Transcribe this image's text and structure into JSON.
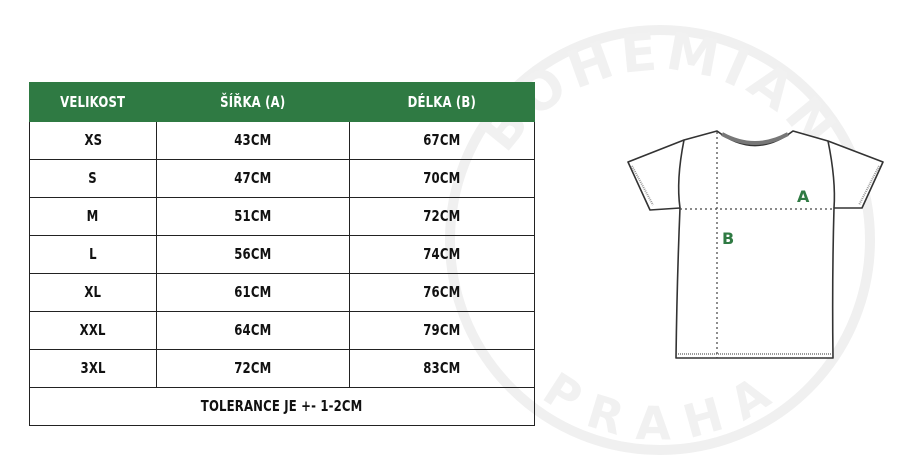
{
  "watermark": {
    "top_text": "BOHEMIAN",
    "bottom_text": "PRAHA"
  },
  "table": {
    "headers": [
      "VELIKOST",
      "ŠÍŘKA (A)",
      "DÉLKA (B)"
    ],
    "rows": [
      [
        "XS",
        "43CM",
        "67CM"
      ],
      [
        "S",
        "47CM",
        "70CM"
      ],
      [
        "M",
        "51CM",
        "72CM"
      ],
      [
        "L",
        "56CM",
        "74CM"
      ],
      [
        "XL",
        "61CM",
        "76CM"
      ],
      [
        "XXL",
        "64CM",
        "79CM"
      ],
      [
        "3XL",
        "72CM",
        "83CM"
      ]
    ],
    "footer": "TOLERANCE JE  +- 1-2CM"
  },
  "diagram": {
    "label_a": "A",
    "label_b": "B"
  },
  "colors": {
    "header_bg": "#2f7a43",
    "label": "#2f7a43"
  }
}
